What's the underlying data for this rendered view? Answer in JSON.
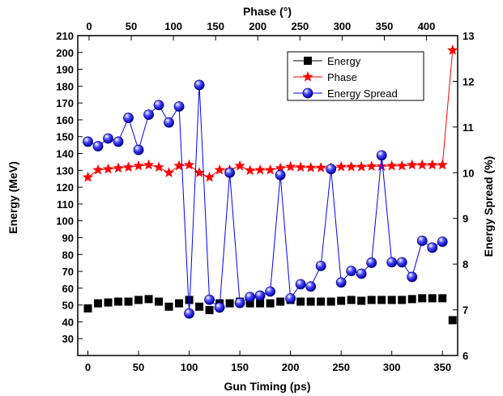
{
  "chart_data": {
    "type": "scatter",
    "title": "",
    "xlabel": "Gun Timing (ps)",
    "ylabel": "Energy (MeV)",
    "x2label": "Phase (°)",
    "y2label": "Energy Spread (%)",
    "xlim": [
      -10,
      365
    ],
    "x2lim": [
      -13.4,
      436.9
    ],
    "ylim": [
      20,
      210
    ],
    "y2lim": [
      6,
      13
    ],
    "x_ticks": [
      0,
      50,
      100,
      150,
      200,
      250,
      300,
      350
    ],
    "x2_ticks": [
      0,
      50,
      100,
      150,
      200,
      250,
      300,
      350,
      400
    ],
    "y_ticks": [
      30,
      40,
      50,
      60,
      70,
      80,
      90,
      100,
      110,
      120,
      130,
      140,
      150,
      160,
      170,
      180,
      190,
      200,
      210
    ],
    "y2_ticks": [
      6,
      7,
      8,
      9,
      10,
      11,
      12,
      13
    ],
    "legend_position": "top-right",
    "grid": false,
    "series": [
      {
        "name": "Energy",
        "axis": "left",
        "marker": "square",
        "color": "#000000",
        "x": [
          0,
          10,
          20,
          30,
          40,
          50,
          60,
          70,
          80,
          90,
          100,
          110,
          120,
          130,
          140,
          150,
          160,
          170,
          180,
          190,
          200,
          210,
          220,
          230,
          240,
          250,
          260,
          270,
          280,
          290,
          300,
          310,
          320,
          330,
          340,
          350,
          360
        ],
        "y": [
          48,
          51,
          51.5,
          52,
          52,
          53,
          53.5,
          52,
          49,
          51,
          53,
          49,
          47,
          51,
          51,
          52,
          51,
          51,
          51,
          52,
          53,
          52,
          52,
          52,
          52,
          52.5,
          53,
          52.5,
          53,
          53,
          53,
          53,
          53.5,
          54,
          54,
          54,
          41
        ]
      },
      {
        "name": "Phase",
        "axis": "top-right",
        "marker": "star",
        "color": "#ff0000",
        "x": [
          0,
          10,
          20,
          30,
          40,
          50,
          60,
          70,
          80,
          90,
          100,
          110,
          120,
          130,
          140,
          150,
          160,
          170,
          180,
          190,
          200,
          210,
          220,
          230,
          240,
          250,
          260,
          270,
          280,
          290,
          300,
          310,
          320,
          330,
          340,
          350,
          360
        ],
        "y": [
          9.9,
          10.06,
          10.08,
          10.1,
          10.12,
          10.15,
          10.17,
          10.12,
          10.0,
          10.15,
          10.17,
          10.0,
          9.9,
          10.06,
          10.06,
          10.15,
          10.05,
          10.06,
          10.06,
          10.1,
          10.13,
          10.12,
          10.11,
          10.11,
          10.11,
          10.13,
          10.13,
          10.13,
          10.14,
          10.14,
          10.15,
          10.15,
          10.17,
          10.17,
          10.17,
          10.17,
          12.68
        ]
      },
      {
        "name": "Energy Spread",
        "axis": "right",
        "marker": "circle",
        "color": "#0000ff",
        "x": [
          0,
          10,
          20,
          30,
          40,
          50,
          60,
          70,
          80,
          90,
          100,
          110,
          120,
          130,
          140,
          150,
          160,
          170,
          180,
          190,
          200,
          210,
          220,
          230,
          240,
          250,
          260,
          270,
          280,
          290,
          300,
          310,
          320,
          330,
          340,
          350
        ],
        "y": [
          10.68,
          10.58,
          10.75,
          10.68,
          11.2,
          10.5,
          11.27,
          11.48,
          11.1,
          11.45,
          6.92,
          11.92,
          7.22,
          7.05,
          10.0,
          7.15,
          7.28,
          7.31,
          7.4,
          9.95,
          7.25,
          7.56,
          7.51,
          7.96,
          10.08,
          7.6,
          7.85,
          7.79,
          8.03,
          10.38,
          8.04,
          8.04,
          7.72,
          8.51,
          8.36,
          8.49
        ]
      }
    ]
  }
}
